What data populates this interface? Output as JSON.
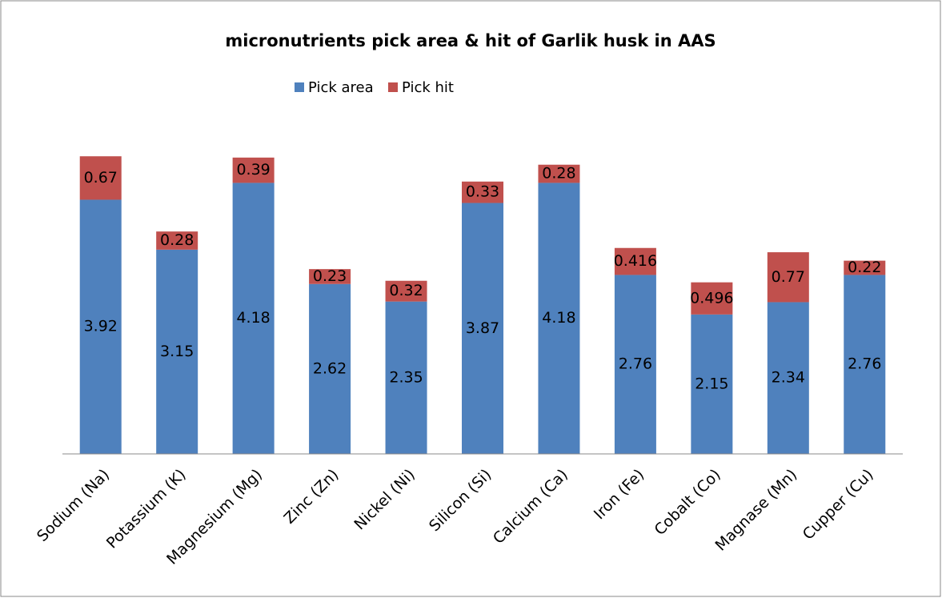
{
  "chart_data": {
    "type": "stacked_bar",
    "title": "micronutrients pick area & hit of Garlik husk in AAS",
    "categories": [
      "Sodium (Na)",
      "Potassium (K)",
      "Magnesium (Mg)",
      "Zinc (Zn)",
      "Nickel (Ni)",
      "Silicon (Si)",
      "Calcium (Ca)",
      "Iron (Fe)",
      "Cobalt (Co)",
      "Magnase (Mn)",
      "Cupper (Cu)"
    ],
    "series": [
      {
        "name": "Pick area",
        "color": "#4f81bd",
        "values": [
          3.92,
          3.15,
          4.18,
          2.62,
          2.35,
          3.87,
          4.18,
          2.76,
          2.15,
          2.34,
          2.76
        ]
      },
      {
        "name": "Pick hit",
        "color": "#c0504d",
        "values": [
          0.67,
          0.28,
          0.39,
          0.23,
          0.32,
          0.33,
          0.28,
          0.416,
          0.496,
          0.77,
          0.22
        ]
      }
    ],
    "legend": "top"
  }
}
